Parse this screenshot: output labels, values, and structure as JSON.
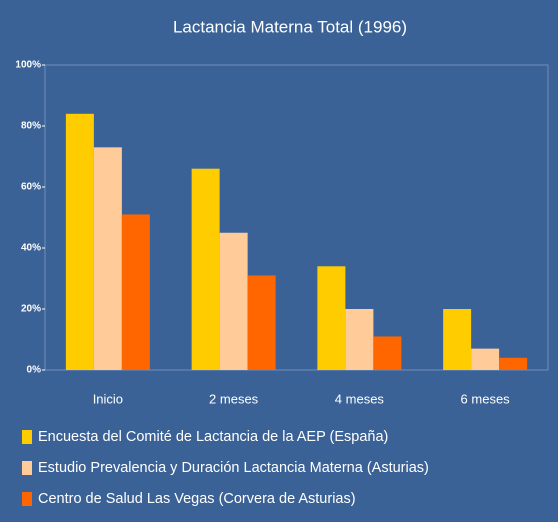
{
  "chart_data": {
    "type": "bar",
    "title": "Lactancia Materna Total (1996)",
    "categories": [
      "Inicio",
      "2 meses",
      "4 meses",
      "6 meses"
    ],
    "series": [
      {
        "name": "Encuesta del Comité de Lactancia de la AEP (España)",
        "color": "#ffcc00",
        "values": [
          84,
          66,
          34,
          20
        ]
      },
      {
        "name": "Estudio Prevalencia y Duración Lactancia Materna (Asturias)",
        "color": "#ffcc99",
        "values": [
          73,
          45,
          20,
          7
        ]
      },
      {
        "name": "Centro de Salud Las Vegas (Corvera de Asturias)",
        "color": "#ff6600",
        "values": [
          51,
          31,
          11,
          4
        ]
      }
    ],
    "ylim": [
      0,
      100
    ],
    "yticks": [
      {
        "value": 0,
        "label": "0%"
      },
      {
        "value": 20,
        "label": "20%"
      },
      {
        "value": 40,
        "label": "40%"
      },
      {
        "value": 60,
        "label": "60%"
      },
      {
        "value": 80,
        "label": "80%"
      },
      {
        "value": 100,
        "label": "100%"
      }
    ],
    "grid": false
  }
}
